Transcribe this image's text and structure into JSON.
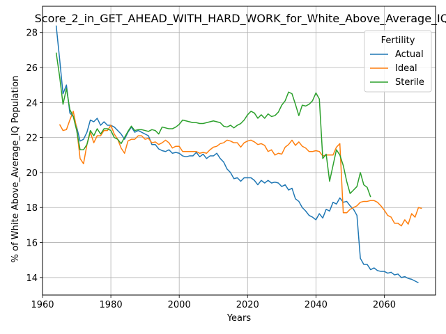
{
  "chart_data": {
    "type": "line",
    "title": "Score_2_in_GET_AHEAD_WITH_HARD_WORK_for_White_Above_Average_IQ",
    "xlabel": "Years",
    "ylabel": "% of White Above_Average_IQ Population",
    "xlim": [
      1960,
      2075
    ],
    "ylim": [
      13,
      29.5
    ],
    "xticks": [
      1960,
      1980,
      2000,
      2020,
      2040,
      2060
    ],
    "yticks": [
      14,
      16,
      18,
      20,
      22,
      24,
      26,
      28
    ],
    "grid": true,
    "legend": {
      "title": "Fertility",
      "placement": "top-right"
    },
    "series": [
      {
        "name": "Actual",
        "color": "#1f77b4",
        "points": [
          [
            1964,
            28.4
          ],
          [
            1965,
            26.5
          ],
          [
            1966,
            24.5
          ],
          [
            1967,
            25.0
          ],
          [
            1968,
            23.4
          ],
          [
            1969,
            23.2
          ],
          [
            1970,
            22.6
          ],
          [
            1971,
            21.8
          ],
          [
            1972,
            21.9
          ],
          [
            1973,
            22.3
          ],
          [
            1974,
            23.0
          ],
          [
            1975,
            22.9
          ],
          [
            1976,
            23.1
          ],
          [
            1977,
            22.7
          ],
          [
            1978,
            22.9
          ],
          [
            1979,
            22.7
          ],
          [
            1980,
            22.7
          ],
          [
            1981,
            22.6
          ],
          [
            1982,
            22.4
          ],
          [
            1983,
            22.2
          ],
          [
            1984,
            21.9
          ],
          [
            1985,
            22.3
          ],
          [
            1986,
            22.6
          ],
          [
            1987,
            22.3
          ],
          [
            1988,
            22.4
          ],
          [
            1989,
            22.3
          ],
          [
            1990,
            22.2
          ],
          [
            1991,
            22.1
          ],
          [
            1992,
            21.6
          ],
          [
            1993,
            21.6
          ],
          [
            1994,
            21.35
          ],
          [
            1995,
            21.25
          ],
          [
            1996,
            21.2
          ],
          [
            1997,
            21.3
          ],
          [
            1998,
            21.1
          ],
          [
            1999,
            21.15
          ],
          [
            2000,
            21.1
          ],
          [
            2001,
            20.95
          ],
          [
            2002,
            20.9
          ],
          [
            2003,
            20.95
          ],
          [
            2004,
            20.95
          ],
          [
            2005,
            21.15
          ],
          [
            2006,
            20.9
          ],
          [
            2007,
            21.05
          ],
          [
            2008,
            20.8
          ],
          [
            2009,
            20.95
          ],
          [
            2010,
            20.95
          ],
          [
            2011,
            21.1
          ],
          [
            2012,
            20.8
          ],
          [
            2013,
            20.6
          ],
          [
            2014,
            20.2
          ],
          [
            2015,
            20.0
          ],
          [
            2016,
            19.65
          ],
          [
            2017,
            19.7
          ],
          [
            2018,
            19.5
          ],
          [
            2019,
            19.7
          ],
          [
            2020,
            19.7
          ],
          [
            2021,
            19.7
          ],
          [
            2022,
            19.55
          ],
          [
            2023,
            19.3
          ],
          [
            2024,
            19.55
          ],
          [
            2025,
            19.4
          ],
          [
            2026,
            19.55
          ],
          [
            2027,
            19.4
          ],
          [
            2028,
            19.45
          ],
          [
            2029,
            19.4
          ],
          [
            2030,
            19.2
          ],
          [
            2031,
            19.3
          ],
          [
            2032,
            19.0
          ],
          [
            2033,
            19.1
          ],
          [
            2034,
            18.5
          ],
          [
            2035,
            18.35
          ],
          [
            2036,
            18.0
          ],
          [
            2037,
            17.8
          ],
          [
            2038,
            17.55
          ],
          [
            2039,
            17.45
          ],
          [
            2040,
            17.3
          ],
          [
            2041,
            17.65
          ],
          [
            2042,
            17.4
          ],
          [
            2043,
            17.9
          ],
          [
            2044,
            17.8
          ],
          [
            2045,
            18.3
          ],
          [
            2046,
            18.2
          ],
          [
            2047,
            18.55
          ],
          [
            2048,
            18.3
          ],
          [
            2049,
            18.35
          ],
          [
            2050,
            18.1
          ],
          [
            2051,
            17.9
          ],
          [
            2052,
            17.55
          ],
          [
            2053,
            15.1
          ],
          [
            2054,
            14.75
          ],
          [
            2055,
            14.75
          ],
          [
            2056,
            14.45
          ],
          [
            2057,
            14.55
          ],
          [
            2058,
            14.4
          ],
          [
            2059,
            14.35
          ],
          [
            2060,
            14.35
          ],
          [
            2061,
            14.25
          ],
          [
            2062,
            14.3
          ],
          [
            2063,
            14.15
          ],
          [
            2064,
            14.2
          ],
          [
            2065,
            14.0
          ],
          [
            2066,
            14.05
          ],
          [
            2067,
            13.95
          ],
          [
            2068,
            13.9
          ],
          [
            2069,
            13.8
          ],
          [
            2070,
            13.7
          ]
        ]
      },
      {
        "name": "Ideal",
        "color": "#ff7f0e",
        "points": [
          [
            1965,
            22.75
          ],
          [
            1966,
            22.4
          ],
          [
            1967,
            22.45
          ],
          [
            1968,
            23.0
          ],
          [
            1969,
            23.5
          ],
          [
            1970,
            22.5
          ],
          [
            1971,
            20.8
          ],
          [
            1972,
            20.5
          ],
          [
            1973,
            21.6
          ],
          [
            1974,
            22.3
          ],
          [
            1975,
            21.7
          ],
          [
            1976,
            22.1
          ],
          [
            1977,
            22.1
          ],
          [
            1978,
            22.4
          ],
          [
            1979,
            22.4
          ],
          [
            1980,
            22.7
          ],
          [
            1981,
            22.2
          ],
          [
            1982,
            21.9
          ],
          [
            1983,
            21.4
          ],
          [
            1984,
            21.1
          ],
          [
            1985,
            21.8
          ],
          [
            1986,
            21.9
          ],
          [
            1987,
            21.9
          ],
          [
            1988,
            22.1
          ],
          [
            1989,
            22.1
          ],
          [
            1990,
            21.9
          ],
          [
            1991,
            21.95
          ],
          [
            1992,
            21.7
          ],
          [
            1993,
            21.75
          ],
          [
            1994,
            21.6
          ],
          [
            1995,
            21.7
          ],
          [
            1996,
            21.85
          ],
          [
            1997,
            21.7
          ],
          [
            1998,
            21.4
          ],
          [
            1999,
            21.5
          ],
          [
            2000,
            21.5
          ],
          [
            2001,
            21.2
          ],
          [
            2002,
            21.2
          ],
          [
            2003,
            21.2
          ],
          [
            2004,
            21.2
          ],
          [
            2005,
            21.2
          ],
          [
            2006,
            21.1
          ],
          [
            2007,
            21.15
          ],
          [
            2008,
            21.1
          ],
          [
            2009,
            21.3
          ],
          [
            2010,
            21.45
          ],
          [
            2011,
            21.5
          ],
          [
            2012,
            21.65
          ],
          [
            2013,
            21.7
          ],
          [
            2014,
            21.85
          ],
          [
            2015,
            21.8
          ],
          [
            2016,
            21.7
          ],
          [
            2017,
            21.7
          ],
          [
            2018,
            21.45
          ],
          [
            2019,
            21.7
          ],
          [
            2020,
            21.8
          ],
          [
            2021,
            21.85
          ],
          [
            2022,
            21.75
          ],
          [
            2023,
            21.6
          ],
          [
            2024,
            21.65
          ],
          [
            2025,
            21.55
          ],
          [
            2026,
            21.2
          ],
          [
            2027,
            21.3
          ],
          [
            2028,
            21.0
          ],
          [
            2029,
            21.1
          ],
          [
            2030,
            21.05
          ],
          [
            2031,
            21.45
          ],
          [
            2032,
            21.6
          ],
          [
            2033,
            21.85
          ],
          [
            2034,
            21.55
          ],
          [
            2035,
            21.75
          ],
          [
            2036,
            21.5
          ],
          [
            2037,
            21.4
          ],
          [
            2038,
            21.2
          ],
          [
            2039,
            21.2
          ],
          [
            2040,
            21.25
          ],
          [
            2041,
            21.2
          ],
          [
            2042,
            20.95
          ],
          [
            2043,
            21.0
          ],
          [
            2044,
            21.0
          ],
          [
            2045,
            21.0
          ],
          [
            2046,
            21.45
          ],
          [
            2047,
            21.65
          ],
          [
            2048,
            17.7
          ],
          [
            2049,
            17.7
          ],
          [
            2050,
            17.9
          ],
          [
            2051,
            18.0
          ],
          [
            2052,
            18.1
          ],
          [
            2053,
            18.3
          ],
          [
            2054,
            18.35
          ],
          [
            2055,
            18.35
          ],
          [
            2056,
            18.4
          ],
          [
            2057,
            18.4
          ],
          [
            2058,
            18.3
          ],
          [
            2059,
            18.1
          ],
          [
            2060,
            17.85
          ],
          [
            2061,
            17.55
          ],
          [
            2062,
            17.45
          ],
          [
            2063,
            17.1
          ],
          [
            2064,
            17.1
          ],
          [
            2065,
            16.95
          ],
          [
            2066,
            17.3
          ],
          [
            2067,
            17.05
          ],
          [
            2068,
            17.65
          ],
          [
            2069,
            17.45
          ],
          [
            2070,
            18.0
          ],
          [
            2071,
            17.95
          ]
        ]
      },
      {
        "name": "Sterile",
        "color": "#2ca02c",
        "points": [
          [
            1964,
            26.85
          ],
          [
            1965,
            25.5
          ],
          [
            1966,
            23.9
          ],
          [
            1967,
            24.8
          ],
          [
            1968,
            23.6
          ],
          [
            1969,
            23.2
          ],
          [
            1970,
            22.4
          ],
          [
            1971,
            21.3
          ],
          [
            1972,
            21.3
          ],
          [
            1973,
            21.6
          ],
          [
            1974,
            22.4
          ],
          [
            1975,
            22.1
          ],
          [
            1976,
            22.5
          ],
          [
            1977,
            22.2
          ],
          [
            1978,
            22.5
          ],
          [
            1979,
            22.5
          ],
          [
            1980,
            22.4
          ],
          [
            1981,
            22.0
          ],
          [
            1982,
            21.9
          ],
          [
            1983,
            21.65
          ],
          [
            1984,
            22.0
          ],
          [
            1985,
            22.35
          ],
          [
            1986,
            22.65
          ],
          [
            1987,
            22.4
          ],
          [
            1988,
            22.45
          ],
          [
            1989,
            22.45
          ],
          [
            1990,
            22.4
          ],
          [
            1991,
            22.35
          ],
          [
            1992,
            22.45
          ],
          [
            1993,
            22.4
          ],
          [
            1994,
            22.2
          ],
          [
            1995,
            22.6
          ],
          [
            1996,
            22.55
          ],
          [
            1997,
            22.5
          ],
          [
            1998,
            22.5
          ],
          [
            1999,
            22.6
          ],
          [
            2000,
            22.75
          ],
          [
            2001,
            23.0
          ],
          [
            2002,
            22.95
          ],
          [
            2003,
            22.9
          ],
          [
            2004,
            22.85
          ],
          [
            2005,
            22.85
          ],
          [
            2006,
            22.8
          ],
          [
            2007,
            22.8
          ],
          [
            2008,
            22.85
          ],
          [
            2009,
            22.9
          ],
          [
            2010,
            22.95
          ],
          [
            2011,
            22.9
          ],
          [
            2012,
            22.85
          ],
          [
            2013,
            22.65
          ],
          [
            2014,
            22.6
          ],
          [
            2015,
            22.7
          ],
          [
            2016,
            22.55
          ],
          [
            2017,
            22.7
          ],
          [
            2018,
            22.8
          ],
          [
            2019,
            23.0
          ],
          [
            2020,
            23.3
          ],
          [
            2021,
            23.5
          ],
          [
            2022,
            23.4
          ],
          [
            2023,
            23.1
          ],
          [
            2024,
            23.3
          ],
          [
            2025,
            23.1
          ],
          [
            2026,
            23.35
          ],
          [
            2027,
            23.2
          ],
          [
            2028,
            23.25
          ],
          [
            2029,
            23.45
          ],
          [
            2030,
            23.85
          ],
          [
            2031,
            24.1
          ],
          [
            2032,
            24.6
          ],
          [
            2033,
            24.5
          ],
          [
            2034,
            23.9
          ],
          [
            2035,
            23.25
          ],
          [
            2036,
            23.85
          ],
          [
            2037,
            23.8
          ],
          [
            2038,
            23.9
          ],
          [
            2039,
            24.1
          ],
          [
            2040,
            24.55
          ],
          [
            2041,
            24.2
          ],
          [
            2042,
            20.8
          ],
          [
            2043,
            21.05
          ],
          [
            2044,
            19.5
          ],
          [
            2045,
            20.4
          ],
          [
            2046,
            21.3
          ],
          [
            2047,
            21.0
          ],
          [
            2048,
            20.4
          ],
          [
            2049,
            19.5
          ],
          [
            2050,
            18.8
          ],
          [
            2051,
            19.0
          ],
          [
            2052,
            19.2
          ],
          [
            2053,
            20.0
          ],
          [
            2054,
            19.3
          ],
          [
            2055,
            19.15
          ],
          [
            2056,
            18.6
          ]
        ]
      }
    ]
  }
}
